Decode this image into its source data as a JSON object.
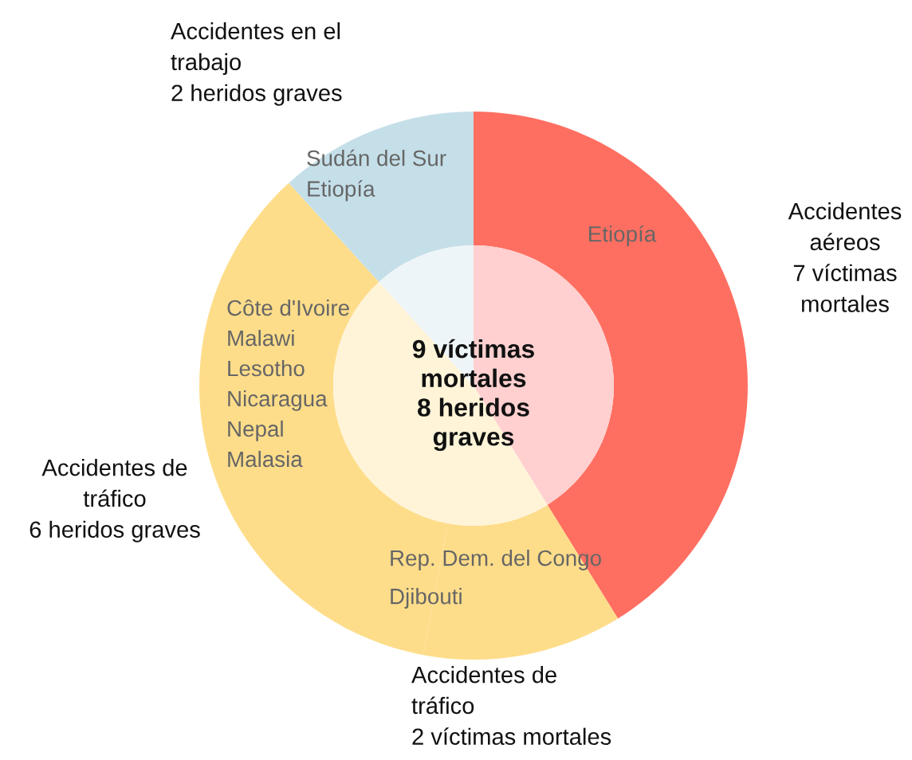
{
  "chart_data": {
    "type": "donut",
    "categories": [
      "Accidentes\naéreos\n7 víctimas\nmortales",
      "Accidentes de\ntráfico\n2 víctimas mortales",
      "Accidentes de\ntráfico\n6 heridos graves",
      "Accidentes en el\ntrabajo\n2 heridos graves"
    ],
    "series": [
      {
        "values": [
          7,
          2,
          6,
          2
        ],
        "colors": [
          "#ff6f61",
          "#fedd8a",
          "#fedd8a",
          "#c5dfe9"
        ]
      },
      {
        "values": [
          7,
          2,
          6,
          2
        ],
        "colors": [
          "#ffd0cf",
          "#fff4d8",
          "#fff4d8",
          "#eef5f8"
        ]
      }
    ],
    "annotations": [
      "Etiopía",
      "Rep. Dem. del Congo\nDjibouti",
      "Côte d'Ivoire\nMalawi\nLesotho\nNicaragua\nNepal\nMalasia",
      "Sudán del Sur\nEtiopía",
      "9 víctimas\nmortales\n8 heridos\ngraves"
    ]
  }
}
